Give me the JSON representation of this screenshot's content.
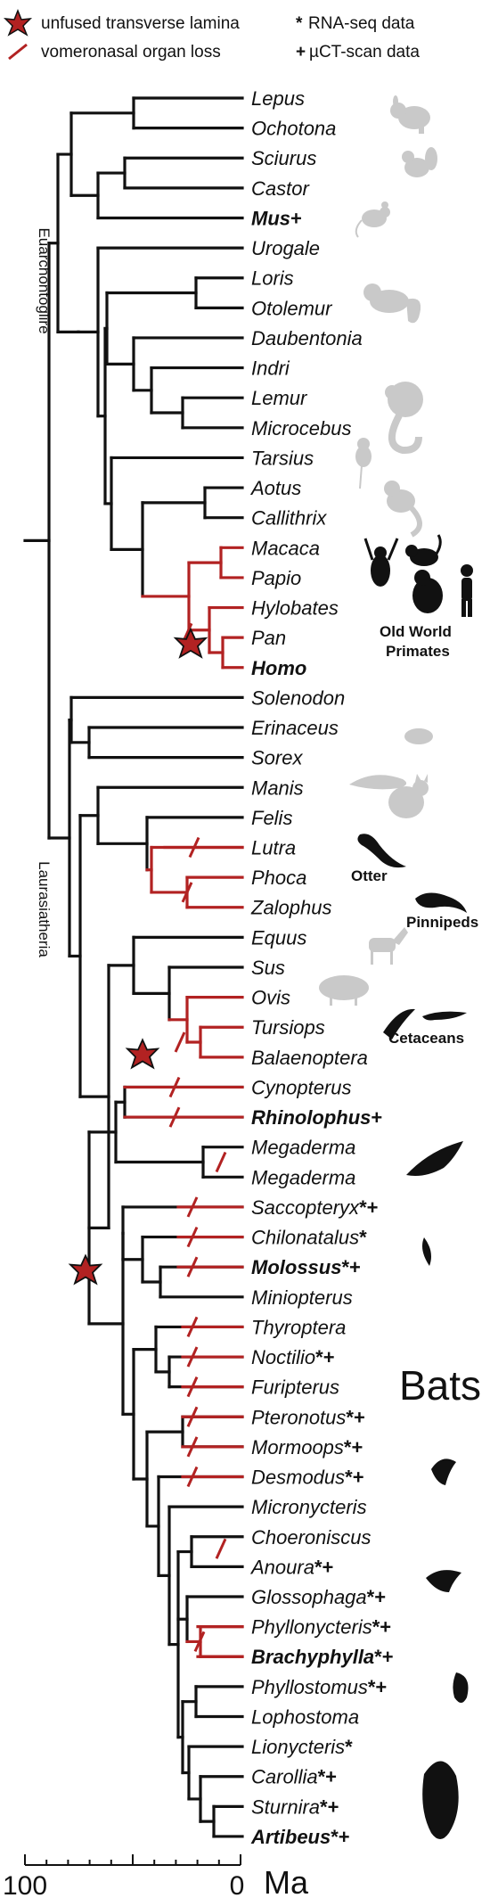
{
  "legend": {
    "unfused_label": "unfused transverse lamina",
    "loss_label": "vomeronasal organ loss",
    "rnaseq_label": "RNA-seq data",
    "rnaseq_symbol": "*",
    "uct_label": "µCT-scan data",
    "uct_symbol": "+",
    "colors": {
      "lineage": "#111111",
      "loss": "#b22222",
      "asterisk": "#b22222"
    }
  },
  "clades": {
    "euarchontoglire": "Euarchontoglire",
    "laurasiatheria": "Laurasiatheria"
  },
  "groups": {
    "old_world_primates_1": "Old World",
    "old_world_primates_2": "Primates",
    "otter": "Otter",
    "pinnipeds": "Pinnipeds",
    "cetaceans": "Cetaceans",
    "bats": "Bats"
  },
  "taxa": [
    {
      "name": "Lepus",
      "suffix": "",
      "bold": false
    },
    {
      "name": "Ochotona",
      "suffix": "",
      "bold": false
    },
    {
      "name": "Sciurus",
      "suffix": "",
      "bold": false
    },
    {
      "name": "Castor",
      "suffix": "",
      "bold": false
    },
    {
      "name": "Mus",
      "suffix": "+",
      "bold": true
    },
    {
      "name": "Urogale",
      "suffix": "",
      "bold": false
    },
    {
      "name": "Loris",
      "suffix": "",
      "bold": false
    },
    {
      "name": "Otolemur",
      "suffix": "",
      "bold": false
    },
    {
      "name": "Daubentonia",
      "suffix": "",
      "bold": false
    },
    {
      "name": "Indri",
      "suffix": "",
      "bold": false
    },
    {
      "name": "Lemur",
      "suffix": "",
      "bold": false
    },
    {
      "name": "Microcebus",
      "suffix": "",
      "bold": false
    },
    {
      "name": "Tarsius",
      "suffix": "",
      "bold": false
    },
    {
      "name": "Aotus",
      "suffix": "",
      "bold": false
    },
    {
      "name": "Callithrix",
      "suffix": "",
      "bold": false
    },
    {
      "name": "Macaca",
      "suffix": "",
      "bold": false
    },
    {
      "name": "Papio",
      "suffix": "",
      "bold": false
    },
    {
      "name": "Hylobates",
      "suffix": "",
      "bold": false
    },
    {
      "name": "Pan",
      "suffix": "",
      "bold": false
    },
    {
      "name": "Homo",
      "suffix": "",
      "bold": true
    },
    {
      "name": "Solenodon",
      "suffix": "",
      "bold": false
    },
    {
      "name": "Erinaceus",
      "suffix": "",
      "bold": false
    },
    {
      "name": "Sorex",
      "suffix": "",
      "bold": false
    },
    {
      "name": "Manis",
      "suffix": "",
      "bold": false
    },
    {
      "name": "Felis",
      "suffix": "",
      "bold": false
    },
    {
      "name": "Lutra",
      "suffix": "",
      "bold": false
    },
    {
      "name": "Phoca",
      "suffix": "",
      "bold": false
    },
    {
      "name": "Zalophus",
      "suffix": "",
      "bold": false
    },
    {
      "name": "Equus",
      "suffix": "",
      "bold": false
    },
    {
      "name": "Sus",
      "suffix": "",
      "bold": false
    },
    {
      "name": "Ovis",
      "suffix": "",
      "bold": false
    },
    {
      "name": "Tursiops",
      "suffix": "",
      "bold": false
    },
    {
      "name": "Balaenoptera",
      "suffix": "",
      "bold": false
    },
    {
      "name": "Cynopterus",
      "suffix": "",
      "bold": false
    },
    {
      "name": "Rhinolophus",
      "suffix": "+",
      "bold": true
    },
    {
      "name": "Megaderma",
      "suffix": "",
      "bold": false
    },
    {
      "name": "Megaderma",
      "suffix": "",
      "bold": false
    },
    {
      "name": "Saccopteryx",
      "suffix": "*+",
      "bold": false
    },
    {
      "name": "Chilonatalus",
      "suffix": "*",
      "bold": false
    },
    {
      "name": "Molossus",
      "suffix": "*+",
      "bold": true
    },
    {
      "name": "Miniopterus",
      "suffix": "",
      "bold": false
    },
    {
      "name": "Thyroptera",
      "suffix": "",
      "bold": false
    },
    {
      "name": "Noctilio",
      "suffix": "*+",
      "bold": false
    },
    {
      "name": "Furipterus",
      "suffix": "",
      "bold": false
    },
    {
      "name": "Pteronotus",
      "suffix": "*+",
      "bold": false
    },
    {
      "name": "Mormoops",
      "suffix": "*+",
      "bold": false
    },
    {
      "name": "Desmodus",
      "suffix": "*+",
      "bold": false
    },
    {
      "name": "Micronycteris",
      "suffix": "",
      "bold": false
    },
    {
      "name": "Choeroniscus",
      "suffix": "",
      "bold": false
    },
    {
      "name": "Anoura",
      "suffix": "*+",
      "bold": false
    },
    {
      "name": "Glossophaga",
      "suffix": "*+",
      "bold": false
    },
    {
      "name": "Phyllonycteris",
      "suffix": "*+",
      "bold": false
    },
    {
      "name": "Brachyphylla",
      "suffix": "*+",
      "bold": true
    },
    {
      "name": "Phyllostomus",
      "suffix": "*+",
      "bold": false
    },
    {
      "name": "Lophostoma",
      "suffix": "",
      "bold": false
    },
    {
      "name": "Lionycteris",
      "suffix": "*",
      "bold": false
    },
    {
      "name": "Carollia",
      "suffix": "*+",
      "bold": false
    },
    {
      "name": "Sturnira",
      "suffix": "*+",
      "bold": false
    },
    {
      "name": "Artibeus",
      "suffix": "*+",
      "bold": true
    }
  ],
  "scale": {
    "left_label": "100",
    "right_label": "0",
    "unit": "Ma"
  },
  "icons": [
    "pika-icon",
    "squirrel-icon",
    "mouse-icon",
    "galago-icon",
    "lemur-icon",
    "tarsier-icon",
    "marmoset-icon",
    "ape-group-icon",
    "hedgehog-icon",
    "pangolin-icon",
    "cat-icon",
    "otter-icon",
    "seal-icon",
    "horse-icon",
    "pig-icon",
    "dolphin-icon",
    "whale-icon",
    "bat-icon"
  ]
}
